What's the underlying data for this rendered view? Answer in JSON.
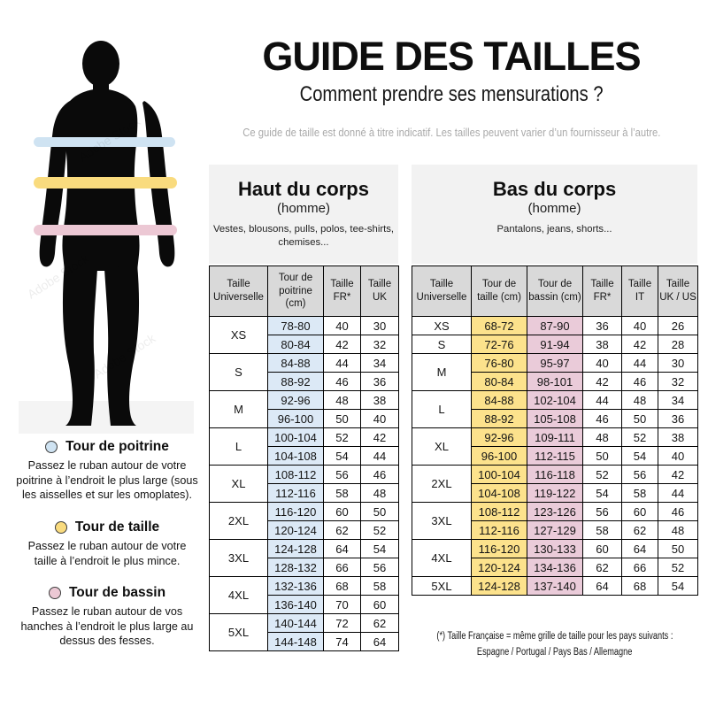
{
  "page": {
    "title": "GUIDE DES TAILLES",
    "subtitle": "Comment prendre ses mensurations ?",
    "disclaimer": "Ce guide de taille est donné à titre indicatif. Les tailles peuvent varier d’un fournisseur à l’autre."
  },
  "watermark": "Adobe Stock",
  "colors": {
    "measure_chest": "#cfe3f2",
    "measure_waist": "#f9db7e",
    "measure_hips": "#ecc8d4",
    "table_header_bg": "#d9d9d9",
    "panel_bg": "#f2f2f2",
    "cell_blue": "#dce9f6",
    "cell_yellow": "#fce28c",
    "cell_pink": "#eacbd9"
  },
  "legend": [
    {
      "title": "Tour de poitrine",
      "text": "Passez le ruban autour de votre poitrine à l’endroit le plus large (sous les aisselles et sur les omoplates)."
    },
    {
      "title": "Tour de taille",
      "text": "Passez le ruban autour de votre taille à l’endroit le plus mince."
    },
    {
      "title": "Tour de bassin",
      "text": "Passez le ruban autour de vos hanches à l’endroit le plus large au dessus des fesses."
    }
  ],
  "upper_table": {
    "title": "Haut du corps",
    "subtitle": "(homme)",
    "description": "Vestes, blousons, pulls, polos, tee-shirts, chemises...",
    "headers": [
      "Taille Universelle",
      "Tour de poitrine (cm)",
      "Taille FR*",
      "Taille UK"
    ],
    "groups": [
      {
        "size": "XS",
        "rows": [
          [
            "78-80",
            "40",
            "30"
          ],
          [
            "80-84",
            "42",
            "32"
          ]
        ]
      },
      {
        "size": "S",
        "rows": [
          [
            "84-88",
            "44",
            "34"
          ],
          [
            "88-92",
            "46",
            "36"
          ]
        ]
      },
      {
        "size": "M",
        "rows": [
          [
            "92-96",
            "48",
            "38"
          ],
          [
            "96-100",
            "50",
            "40"
          ]
        ]
      },
      {
        "size": "L",
        "rows": [
          [
            "100-104",
            "52",
            "42"
          ],
          [
            "104-108",
            "54",
            "44"
          ]
        ]
      },
      {
        "size": "XL",
        "rows": [
          [
            "108-112",
            "56",
            "46"
          ],
          [
            "112-116",
            "58",
            "48"
          ]
        ]
      },
      {
        "size": "2XL",
        "rows": [
          [
            "116-120",
            "60",
            "50"
          ],
          [
            "120-124",
            "62",
            "52"
          ]
        ]
      },
      {
        "size": "3XL",
        "rows": [
          [
            "124-128",
            "64",
            "54"
          ],
          [
            "128-132",
            "66",
            "56"
          ]
        ]
      },
      {
        "size": "4XL",
        "rows": [
          [
            "132-136",
            "68",
            "58"
          ],
          [
            "136-140",
            "70",
            "60"
          ]
        ]
      },
      {
        "size": "5XL",
        "rows": [
          [
            "140-144",
            "72",
            "62"
          ],
          [
            "144-148",
            "74",
            "64"
          ]
        ]
      }
    ]
  },
  "lower_table": {
    "title": "Bas du corps",
    "subtitle": "(homme)",
    "description": "Pantalons, jeans, shorts...",
    "headers": [
      "Taille Universelle",
      "Tour de taille (cm)",
      "Tour de bassin (cm)",
      "Taille FR*",
      "Taille IT",
      "Taille UK / US"
    ],
    "groups": [
      {
        "size": "XS",
        "rows": [
          [
            "68-72",
            "87-90",
            "36",
            "40",
            "26"
          ]
        ]
      },
      {
        "size": "S",
        "rows": [
          [
            "72-76",
            "91-94",
            "38",
            "42",
            "28"
          ]
        ]
      },
      {
        "size": "M",
        "rows": [
          [
            "76-80",
            "95-97",
            "40",
            "44",
            "30"
          ],
          [
            "80-84",
            "98-101",
            "42",
            "46",
            "32"
          ]
        ]
      },
      {
        "size": "L",
        "rows": [
          [
            "84-88",
            "102-104",
            "44",
            "48",
            "34"
          ],
          [
            "88-92",
            "105-108",
            "46",
            "50",
            "36"
          ]
        ]
      },
      {
        "size": "XL",
        "rows": [
          [
            "92-96",
            "109-111",
            "48",
            "52",
            "38"
          ],
          [
            "96-100",
            "112-115",
            "50",
            "54",
            "40"
          ]
        ]
      },
      {
        "size": "2XL",
        "rows": [
          [
            "100-104",
            "116-118",
            "52",
            "56",
            "42"
          ],
          [
            "104-108",
            "119-122",
            "54",
            "58",
            "44"
          ]
        ]
      },
      {
        "size": "3XL",
        "rows": [
          [
            "108-112",
            "123-126",
            "56",
            "60",
            "46"
          ],
          [
            "112-116",
            "127-129",
            "58",
            "62",
            "48"
          ]
        ]
      },
      {
        "size": "4XL",
        "rows": [
          [
            "116-120",
            "130-133",
            "60",
            "64",
            "50"
          ],
          [
            "120-124",
            "134-136",
            "62",
            "66",
            "52"
          ]
        ]
      },
      {
        "size": "5XL",
        "rows": [
          [
            "124-128",
            "137-140",
            "64",
            "68",
            "54"
          ]
        ]
      }
    ]
  },
  "footnote": {
    "line1": "(*) Taille Française = même grille de taille pour les pays suivants :",
    "line2": "Espagne / Portugal / Pays Bas / Allemagne"
  }
}
